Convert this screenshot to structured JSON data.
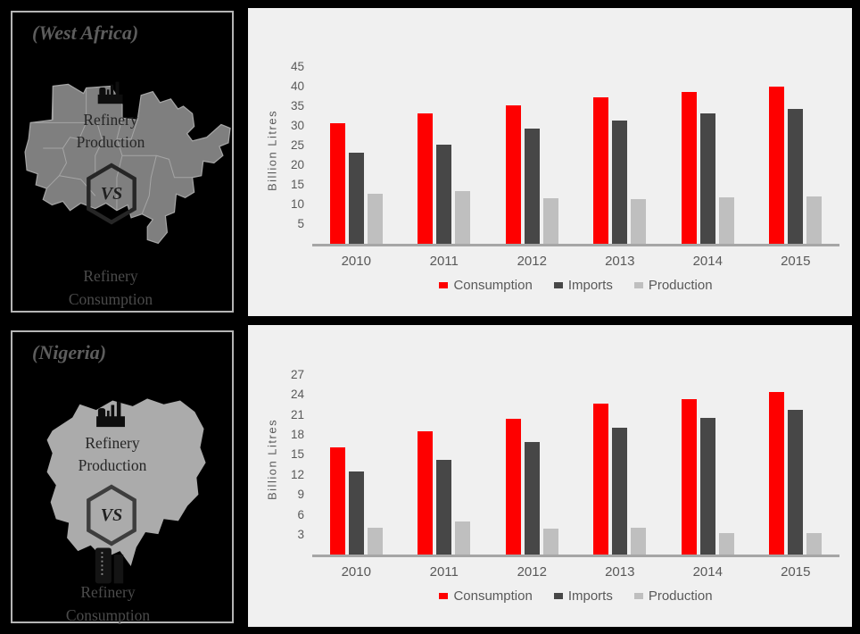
{
  "colors": {
    "background": "#000000",
    "panel_bg": "#f0f0f0",
    "series": [
      "#fe0000",
      "#474747",
      "#bfbfbf"
    ],
    "axis_line": "#a6a6a6",
    "text": "#595959",
    "left_title": "#5d5d5d",
    "panel_border": "#b5b5b5",
    "map_west_africa": "#7f7f7f",
    "map_border": "#a5a5a5",
    "map_nigeria": "#ababab",
    "overlay_text": "#262626",
    "consumption_text": "#4b4b4b"
  },
  "panels": {
    "west_africa": {
      "title": "(West Africa)",
      "production_label": "Refinery Production",
      "vs_label": "VS",
      "consumption_label": "Refinery Consumption"
    },
    "nigeria": {
      "title": "(Nigeria)",
      "production_label": "Refinery Production",
      "vs_label": "VS",
      "consumption_label": "Refinery Consumption"
    }
  },
  "chart_data": [
    {
      "type": "bar",
      "region": "West Africa",
      "title": "",
      "xlabel": "",
      "ylabel": "Billion Litres",
      "categories": [
        "2010",
        "2011",
        "2012",
        "2013",
        "2014",
        "2015"
      ],
      "series": [
        {
          "name": "Consumption",
          "values": [
            30.5,
            33,
            35,
            37,
            38.5,
            39.7
          ]
        },
        {
          "name": "Imports",
          "values": [
            23,
            25.2,
            29.2,
            31.2,
            33,
            34.2
          ]
        },
        {
          "name": "Production",
          "values": [
            12.6,
            13.3,
            11.5,
            11.4,
            11.7,
            11.9
          ]
        }
      ],
      "yticks": [
        5,
        10,
        15,
        20,
        25,
        30,
        35,
        40,
        45
      ],
      "ylim": [
        0,
        47.5
      ],
      "grid": false,
      "legend_position": "bottom"
    },
    {
      "type": "bar",
      "region": "Nigeria",
      "title": "",
      "xlabel": "",
      "ylabel": "Billion Litres",
      "categories": [
        "2010",
        "2011",
        "2012",
        "2013",
        "2014",
        "2015"
      ],
      "series": [
        {
          "name": "Consumption",
          "values": [
            16,
            18.4,
            20.4,
            22.6,
            23.3,
            24.3
          ]
        },
        {
          "name": "Imports",
          "values": [
            12.4,
            14.2,
            16.9,
            19,
            20.5,
            21.7
          ]
        },
        {
          "name": "Production",
          "values": [
            4,
            4.9,
            3.9,
            4,
            3.2,
            3.2
          ]
        }
      ],
      "yticks": [
        3,
        6,
        9,
        12,
        15,
        18,
        21,
        24,
        27
      ],
      "ylim": [
        0,
        28.5
      ],
      "grid": false,
      "legend_position": "bottom"
    }
  ]
}
